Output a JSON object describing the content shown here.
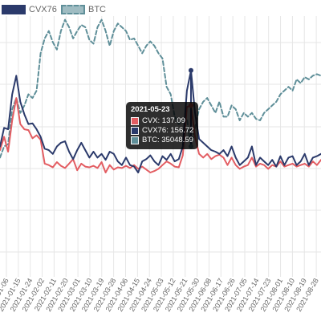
{
  "chart_data": {
    "type": "line",
    "x_ticks": [
      "2021-01-06",
      "2021-01-15",
      "2021-01-24",
      "2021-02-02",
      "2021-02-11",
      "2021-02-20",
      "2021-03-01",
      "2021-03-10",
      "2021-03-19",
      "2021-03-28",
      "2021-04-06",
      "2021-04-15",
      "2021-04-24",
      "2021-05-03",
      "2021-05-12",
      "2021-05-21",
      "2021-05-30",
      "2021-06-08",
      "2021-06-17",
      "2021-06-26",
      "2021-07-05",
      "2021-07-14",
      "2021-07-23",
      "2021-08-01",
      "2021-08-10",
      "2021-08-19",
      "2021-08-28"
    ],
    "legend": [
      {
        "label": "CVX76",
        "color": "#2b3a6b",
        "style": "solid"
      },
      {
        "label": "BTC",
        "color": "#5f8f99",
        "style": "dashed"
      }
    ],
    "series": [
      {
        "name": "CVX",
        "color": "#e35d62",
        "values": [
          170,
          188,
          168,
          210,
          240,
          205,
          198,
          197,
          186,
          190,
          184,
          152,
          150,
          147,
          154,
          149,
          146,
          152,
          158,
          143,
          152,
          148,
          147,
          149,
          146,
          154,
          140,
          150,
          144,
          147,
          146,
          149,
          146,
          150,
          145,
          148,
          144,
          140,
          142,
          145,
          150,
          155,
          152,
          148,
          147,
          163,
          228,
          230,
          188,
          165,
          160,
          165,
          158,
          162,
          164,
          160,
          150,
          160,
          150,
          145,
          148,
          150,
          160,
          148,
          152,
          150,
          145,
          150,
          148,
          155,
          148,
          150,
          152,
          148,
          150,
          152,
          148,
          155,
          150,
          157
        ]
      },
      {
        "name": "CVX76",
        "color": "#2b3a6b",
        "values": [
          175,
          200,
          198,
          245,
          270,
          235,
          218,
          205,
          206,
          198,
          188,
          172,
          170,
          165,
          175,
          180,
          182,
          168,
          158,
          170,
          180,
          170,
          160,
          168,
          160,
          165,
          157,
          168,
          165,
          155,
          150,
          160,
          150,
          148,
          140,
          155,
          158,
          163,
          155,
          150,
          162,
          157,
          165,
          155,
          158,
          175,
          250,
          277,
          220,
          185,
          180,
          175,
          170,
          168,
          165,
          170,
          162,
          175,
          160,
          150,
          155,
          160,
          175,
          150,
          160,
          155,
          150,
          157,
          148,
          162,
          150,
          160,
          162,
          150,
          155,
          165,
          150,
          160,
          162,
          165
        ]
      },
      {
        "name": "BTC",
        "color": "#5f8f99",
        "values": [
          160,
          175,
          178,
          225,
          240,
          220,
          230,
          245,
          240,
          250,
          300,
          320,
          330,
          315,
          305,
          330,
          345,
          335,
          320,
          330,
          338,
          335,
          318,
          313,
          335,
          345,
          330,
          310,
          330,
          340,
          335,
          330,
          318,
          320,
          310,
          300,
          310,
          316,
          310,
          300,
          293,
          255,
          245,
          215,
          205,
          210,
          212,
          175,
          200,
          225,
          235,
          240,
          230,
          220,
          235,
          215,
          215,
          230,
          225,
          210,
          220,
          215,
          220,
          212,
          210,
          220,
          225,
          230,
          235,
          245,
          250,
          255,
          250,
          265,
          260,
          268,
          265,
          270,
          272,
          270
        ]
      }
    ],
    "hover": {
      "date": "2021-05-23",
      "rows": [
        {
          "label": "CVX: 137.09",
          "color": "#e35d62"
        },
        {
          "label": "CVX76: 156.72",
          "color": "#2b3a6b"
        },
        {
          "label": "BTC: 35048.59",
          "color": "#5f8f99"
        }
      ]
    }
  }
}
